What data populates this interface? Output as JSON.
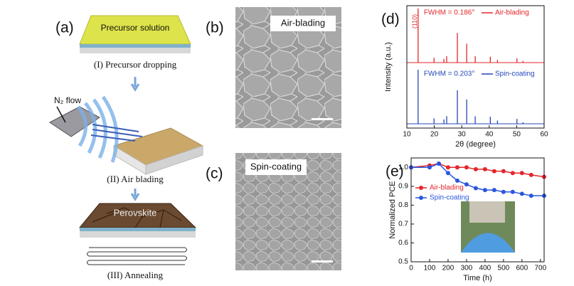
{
  "panels": {
    "a": {
      "label": "(a)",
      "precursor": "Precursor solution",
      "step1": "(I) Precursor dropping",
      "gas": "N₂ flow",
      "step2": "(II) Air blading",
      "film": "Perovskite",
      "step3": "(III) Annealing"
    },
    "b": {
      "label": "(b)",
      "caption": "Air-blading"
    },
    "c": {
      "label": "(c)",
      "caption": "Spin-coating"
    }
  },
  "chart_data": [
    {
      "type": "spectrum",
      "label": "(d)",
      "x_label": "2θ (degree)",
      "y_label": "Intensity (a.u.)",
      "xlim": [
        10,
        60
      ],
      "xticks": [
        10,
        20,
        30,
        40,
        50,
        60
      ],
      "annotation": "(110)",
      "series": [
        {
          "name": "Air-blading",
          "color": "#e3262b",
          "annotation": "FWHM = 0.186°",
          "x": [
            14.1,
            19.9,
            23.5,
            24.5,
            28.4,
            31.8,
            34.9,
            40.4,
            43.0,
            50.1,
            52.3
          ],
          "values": [
            100,
            9,
            7,
            12,
            55,
            35,
            12,
            11,
            5,
            8,
            3
          ]
        },
        {
          "name": "Spin-coating",
          "color": "#2447b8",
          "annotation": "FWHM = 0.203°",
          "x": [
            14.1,
            19.9,
            23.5,
            24.5,
            28.4,
            31.8,
            34.9,
            40.4,
            43.0,
            50.1,
            52.3
          ],
          "values": [
            100,
            10,
            8,
            14,
            62,
            45,
            14,
            13,
            6,
            9,
            3
          ]
        }
      ]
    },
    {
      "type": "line",
      "label": "(e)",
      "x_label": "Time (h)",
      "y_label": "Normalized PCE",
      "xlim": [
        0,
        720
      ],
      "xticks": [
        0,
        100,
        200,
        300,
        400,
        500,
        600,
        700
      ],
      "ylim": [
        0.5,
        1.05
      ],
      "yticks": [
        0.5,
        0.6,
        0.7,
        0.8,
        0.9,
        {
          "value": 1,
          "label": "1.0"
        }
      ],
      "x": [
        0,
        100,
        150,
        200,
        250,
        300,
        350,
        400,
        450,
        500,
        550,
        600,
        650,
        720
      ],
      "series": [
        {
          "name": "Air-blading",
          "color": "#e3262b",
          "values": [
            1.0,
            1.01,
            1.02,
            1.0,
            1.0,
            1.0,
            0.99,
            0.99,
            0.98,
            0.98,
            0.97,
            0.97,
            0.96,
            0.95
          ]
        },
        {
          "name": "Spin-coating",
          "color": "#2a56e0",
          "values": [
            1.0,
            1.0,
            1.02,
            0.97,
            0.93,
            0.91,
            0.89,
            0.88,
            0.88,
            0.87,
            0.87,
            0.86,
            0.85,
            0.85
          ]
        }
      ]
    }
  ]
}
